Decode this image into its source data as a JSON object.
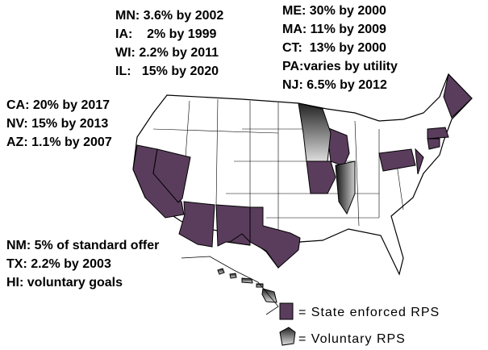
{
  "annotations": {
    "midwest": [
      "MN: 3.6% by 2002",
      "IA:    2% by 1999",
      "WI: 2.2% by 2011",
      "IL:   15% by 2020"
    ],
    "northeast": [
      "ME: 30% by 2000",
      "MA: 11% by 2009",
      "CT:  13% by 2000",
      "PA:varies by utility",
      "NJ: 6.5% by 2012"
    ],
    "west": [
      "CA: 20% by 2017",
      "NV: 15% by 2013",
      "AZ: 1.1% by 2007"
    ],
    "south": [
      "NM: 5% of standard offer",
      "TX: 2.2% by 2003",
      "HI: voluntary goals"
    ]
  },
  "legend": {
    "enforced": "= State enforced RPS",
    "voluntary": "= Voluntary RPS"
  }
}
